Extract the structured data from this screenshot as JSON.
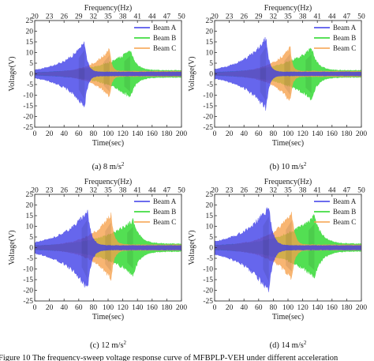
{
  "colors": {
    "beam_a": "#3b3be8",
    "beam_b": "#22d622",
    "beam_c": "#f6a04a",
    "axis": "#333333"
  },
  "figure_caption": "Figure 10 The frequency-sweep voltage response curve of MFBPLP-VEH under different acceleration",
  "chart_data": [
    {
      "type": "area",
      "caption": "(a) 8 m/s",
      "caption_sup": "2",
      "title": "Frequency(Hz)",
      "xlabel": "Time(sec)",
      "ylabel": "Voltage(V)",
      "xlim": [
        0,
        200
      ],
      "ylim": [
        -25,
        25
      ],
      "x_ticks": [
        0,
        20,
        40,
        60,
        80,
        100,
        120,
        140,
        160,
        180,
        200
      ],
      "y_ticks": [
        -25,
        -20,
        -15,
        -10,
        -5,
        0,
        5,
        10,
        15,
        20,
        25
      ],
      "top_ticks": [
        20,
        23,
        26,
        29,
        32,
        35,
        38,
        41,
        44,
        47,
        50
      ],
      "legend": [
        "Beam A",
        "Beam B",
        "Beam C"
      ],
      "series": [
        {
          "name": "Beam A",
          "peak_x": 68,
          "peak": 16,
          "neg": 17,
          "base": 0.5,
          "rise": 30,
          "fall": 4,
          "tail": 1.0
        },
        {
          "name": "Beam B",
          "peak_x": 130,
          "peak": 12,
          "neg": 12,
          "base": 0.4,
          "rise": 38,
          "fall": 8,
          "tail": 1.8
        },
        {
          "name": "Beam C",
          "peak_x": 102,
          "peak": 12.5,
          "neg": 12,
          "base": 0.4,
          "rise": 25,
          "fall": 3,
          "tail": 1.4
        }
      ]
    },
    {
      "type": "area",
      "caption": "(b) 10 m/s",
      "caption_sup": "2",
      "title": "Frequency(Hz)",
      "xlabel": "Time(sec)",
      "ylabel": "Voltage(V)",
      "xlim": [
        0,
        200
      ],
      "ylim": [
        -25,
        25
      ],
      "x_ticks": [
        0,
        20,
        40,
        60,
        80,
        100,
        120,
        140,
        160,
        180,
        200
      ],
      "y_ticks": [
        -25,
        -20,
        -15,
        -10,
        -5,
        0,
        5,
        10,
        15,
        20,
        25
      ],
      "top_ticks": [
        20,
        23,
        26,
        29,
        32,
        35,
        38,
        41,
        44,
        47,
        50
      ],
      "legend": [
        "Beam A",
        "Beam B",
        "Beam C"
      ],
      "series": [
        {
          "name": "Beam A",
          "peak_x": 70,
          "peak": 18,
          "neg": 18,
          "base": 0.5,
          "rise": 32,
          "fall": 4,
          "tail": 1.0
        },
        {
          "name": "Beam B",
          "peak_x": 132,
          "peak": 13,
          "neg": 13,
          "base": 0.4,
          "rise": 40,
          "fall": 8,
          "tail": 1.8
        },
        {
          "name": "Beam C",
          "peak_x": 103,
          "peak": 13.5,
          "neg": 14,
          "base": 0.4,
          "rise": 26,
          "fall": 3,
          "tail": 1.4
        }
      ]
    },
    {
      "type": "area",
      "caption": "(c) 12 m/s",
      "caption_sup": "2",
      "title": "Frequency(Hz)",
      "xlabel": "Time(sec)",
      "ylabel": "Voltage(V)",
      "xlim": [
        0,
        200
      ],
      "ylim": [
        -25,
        25
      ],
      "x_ticks": [
        0,
        20,
        40,
        60,
        80,
        100,
        120,
        140,
        160,
        180,
        200
      ],
      "y_ticks": [
        -25,
        -20,
        -15,
        -10,
        -5,
        0,
        5,
        10,
        15,
        20,
        25
      ],
      "top_ticks": [
        20,
        23,
        26,
        29,
        32,
        35,
        38,
        41,
        44,
        47,
        50
      ],
      "legend": [
        "Beam A",
        "Beam B",
        "Beam C"
      ],
      "series": [
        {
          "name": "Beam A",
          "peak_x": 72,
          "peak": 19,
          "neg": 21,
          "base": 0.5,
          "rise": 34,
          "fall": 5,
          "tail": 1.1
        },
        {
          "name": "Beam B",
          "peak_x": 134,
          "peak": 14,
          "neg": 14,
          "base": 0.5,
          "rise": 42,
          "fall": 9,
          "tail": 2.0
        },
        {
          "name": "Beam C",
          "peak_x": 104,
          "peak": 17,
          "neg": 16,
          "base": 0.5,
          "rise": 28,
          "fall": 4,
          "tail": 1.5
        }
      ]
    },
    {
      "type": "area",
      "caption": "(d) 14 m/s",
      "caption_sup": "2",
      "title": "Frequency(Hz)",
      "xlabel": "Time(sec)",
      "ylabel": "Voltage(V)",
      "xlim": [
        0,
        200
      ],
      "ylim": [
        -25,
        25
      ],
      "x_ticks": [
        0,
        20,
        40,
        60,
        80,
        100,
        120,
        140,
        160,
        180,
        200
      ],
      "y_ticks": [
        -25,
        -20,
        -15,
        -10,
        -5,
        0,
        5,
        10,
        15,
        20,
        25
      ],
      "top_ticks": [
        20,
        23,
        26,
        29,
        32,
        35,
        38,
        41,
        44,
        47,
        50
      ],
      "legend": [
        "Beam A",
        "Beam B",
        "Beam C"
      ],
      "series": [
        {
          "name": "Beam A",
          "peak_x": 74,
          "peak": 21,
          "neg": 23,
          "base": 0.5,
          "rise": 36,
          "fall": 5,
          "tail": 1.1
        },
        {
          "name": "Beam B",
          "peak_x": 136,
          "peak": 16,
          "neg": 15,
          "base": 0.5,
          "rise": 44,
          "fall": 10,
          "tail": 2.0
        },
        {
          "name": "Beam C",
          "peak_x": 105,
          "peak": 18,
          "neg": 16,
          "base": 0.5,
          "rise": 30,
          "fall": 4,
          "tail": 1.5
        }
      ]
    }
  ]
}
